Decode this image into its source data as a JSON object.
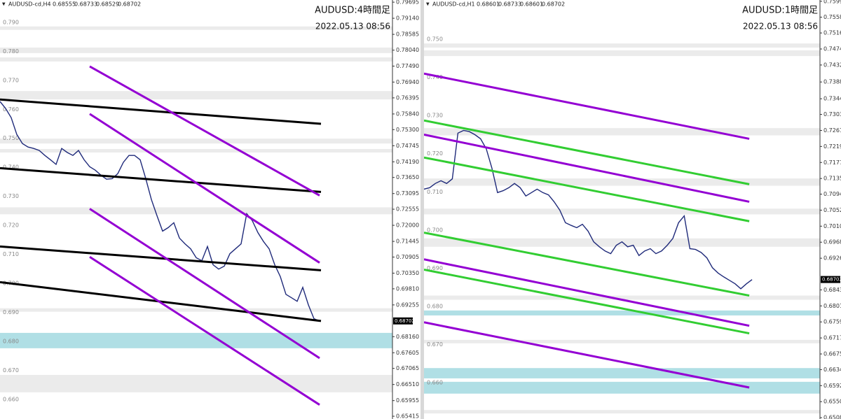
{
  "chart_data": [
    {
      "type": "line",
      "title": "AUDUSD-cd,H4",
      "ohlc": [
        0.68555,
        0.68733,
        0.68529,
        0.68702
      ],
      "overlay_title": "AUDUSD:4時間足",
      "timestamp": "2022.05.13 08:56",
      "current_price": 0.68702,
      "ylim": [
        0.6532,
        0.7977
      ],
      "xlim": [
        0,
        70
      ],
      "grid": false,
      "color": "#1f2a7a",
      "yticks": [
        0.79695,
        {
          "value": 0.7914,
          "label": "0.79140"
        },
        0.78585,
        {
          "value": 0.7804,
          "label": "0.78040"
        },
        {
          "value": 0.7749,
          "label": "0.77490"
        },
        {
          "value": 0.7694,
          "label": "0.76940"
        },
        0.76395,
        {
          "value": 0.7584,
          "label": "0.75840"
        },
        {
          "value": 0.753,
          "label": "0.75300"
        },
        0.74745,
        {
          "value": 0.7419,
          "label": "0.74190"
        },
        {
          "value": 0.7365,
          "label": "0.73650"
        },
        0.73095,
        0.72555,
        {
          "value": 0.72,
          "label": "0.72000"
        },
        0.71445,
        0.70905,
        {
          "value": 0.7035,
          "label": "0.70350"
        },
        {
          "value": 0.6981,
          "label": "0.69810"
        },
        0.69255,
        {
          "value": 0.6816,
          "label": "0.68160"
        },
        0.67605,
        0.67065,
        {
          "value": 0.6651,
          "label": "0.66510"
        },
        0.65955,
        0.65415
      ],
      "grid_labels": [
        {
          "value": 0.79,
          "label": "0.790"
        },
        {
          "value": 0.78,
          "label": "0.780"
        },
        {
          "value": 0.77,
          "label": "0.770"
        },
        {
          "value": 0.76,
          "label": "0.760"
        },
        {
          "value": 0.75,
          "label": "0.750"
        },
        {
          "value": 0.74,
          "label": "0.740"
        },
        {
          "value": 0.73,
          "label": "0.730"
        },
        {
          "value": 0.72,
          "label": "0.720"
        },
        {
          "value": 0.71,
          "label": "0.710"
        },
        {
          "value": 0.7,
          "label": "0.700"
        },
        {
          "value": 0.69,
          "label": "0.690"
        },
        {
          "value": 0.68,
          "label": "0.680"
        },
        {
          "value": 0.67,
          "label": "0.670"
        },
        {
          "value": 0.66,
          "label": "0.660"
        }
      ],
      "values": [
        0.7627,
        0.7603,
        0.7571,
        0.7513,
        0.7482,
        0.747,
        0.7465,
        0.7458,
        0.7441,
        0.7426,
        0.741,
        0.7465,
        0.7451,
        0.7441,
        0.7458,
        0.7426,
        0.7402,
        0.739,
        0.7373,
        0.7359,
        0.7361,
        0.7378,
        0.7417,
        0.7441,
        0.7441,
        0.7426,
        0.7361,
        0.7289,
        0.7233,
        0.718,
        0.7192,
        0.7209,
        0.7156,
        0.7136,
        0.7119,
        0.7088,
        0.7078,
        0.7127,
        0.7064,
        0.7049,
        0.7059,
        0.7102,
        0.7119,
        0.7136,
        0.724,
        0.7216,
        0.7175,
        0.7144,
        0.7119,
        0.7064,
        0.7023,
        0.6962,
        0.695,
        0.6938,
        0.6986,
        0.6926,
        0.6878,
        0.687
      ],
      "zones": [
        {
          "from": 0.7874,
          "to": 0.7886,
          "color": "#ebebeb"
        },
        {
          "from": 0.7794,
          "to": 0.7813,
          "color": "#ebebeb"
        },
        {
          "from": 0.7765,
          "to": 0.7779,
          "color": "#ebebeb"
        },
        {
          "from": 0.7634,
          "to": 0.7663,
          "color": "#ebebeb"
        },
        {
          "from": 0.7482,
          "to": 0.7499,
          "color": "#ebebeb"
        },
        {
          "from": 0.7451,
          "to": 0.7463,
          "color": "#ebebeb"
        },
        {
          "from": 0.7238,
          "to": 0.7262,
          "color": "#ebebeb"
        },
        {
          "from": 0.6902,
          "to": 0.6914,
          "color": "#ebebeb"
        },
        {
          "from": 0.6776,
          "to": 0.6829,
          "color": "#b0dfe5"
        },
        {
          "from": 0.6624,
          "to": 0.6684,
          "color": "#ebebeb"
        }
      ],
      "lines": [
        {
          "x": [
            0,
            57.25
          ],
          "y": [
            0.7634,
            0.755
          ],
          "color": "#000000"
        },
        {
          "x": [
            0,
            57.25
          ],
          "y": [
            0.7397,
            0.7315
          ],
          "color": "#000000"
        },
        {
          "x": [
            0,
            57.25
          ],
          "y": [
            0.7127,
            0.7045
          ],
          "color": "#000000"
        },
        {
          "x": [
            0,
            57.25
          ],
          "y": [
            0.7004,
            0.687
          ],
          "color": "#000000"
        },
        {
          "x": [
            16,
            57
          ],
          "y": [
            0.7748,
            0.7303
          ],
          "color": "#9400d3"
        },
        {
          "x": [
            16,
            57
          ],
          "y": [
            0.7584,
            0.7071
          ],
          "color": "#9400d3"
        },
        {
          "x": [
            16,
            57
          ],
          "y": [
            0.7257,
            0.6742
          ],
          "color": "#9400d3"
        },
        {
          "x": [
            16,
            57
          ],
          "y": [
            0.7091,
            0.6581
          ],
          "color": "#9400d3"
        }
      ]
    },
    {
      "type": "line",
      "title": "AUDUSD-cd,H1",
      "ohlc": [
        0.68601,
        0.68733,
        0.68601,
        0.68702
      ],
      "overlay_title": "AUDUSD:1時間足",
      "timestamp": "2022.05.13 08:56",
      "current_price": 0.68702,
      "ylim": [
        0.65045,
        0.76029
      ],
      "xlim": [
        0,
        70
      ],
      "grid": false,
      "color": "#1f2a7a",
      "yticks": [
        0.75995,
        {
          "value": 0.7558,
          "label": "0.75580"
        },
        0.75165,
        0.74745,
        0.74325,
        {
          "value": 0.7388,
          "label": "0.73880"
        },
        {
          "value": 0.7344,
          "label": "0.73440"
        },
        {
          "value": 0.7303,
          "label": "0.73030"
        },
        {
          "value": 0.7261,
          "label": "0.72610"
        },
        {
          "value": 0.7219,
          "label": "0.72190"
        },
        {
          "value": 0.7177,
          "label": "0.71770"
        },
        {
          "value": 0.7135,
          "label": "0.71350"
        },
        {
          "value": 0.7094,
          "label": "0.70940"
        },
        {
          "value": 0.7052,
          "label": "0.70520"
        },
        {
          "value": 0.701,
          "label": "0.70100"
        },
        {
          "value": 0.6968,
          "label": "0.69680"
        },
        {
          "value": 0.6926,
          "label": "0.69260"
        },
        {
          "value": 0.6843,
          "label": "0.68430"
        },
        {
          "value": 0.6801,
          "label": "0.68010"
        },
        {
          "value": 0.6759,
          "label": "0.67590"
        },
        {
          "value": 0.6717,
          "label": "0.67170"
        },
        {
          "value": 0.6675,
          "label": "0.66750"
        },
        {
          "value": 0.6634,
          "label": "0.66340"
        },
        {
          "value": 0.6592,
          "label": "0.65920"
        },
        {
          "value": 0.655,
          "label": "0.65500"
        },
        {
          "value": 0.6508,
          "label": "0.65080"
        }
      ],
      "grid_labels": [
        {
          "value": 0.75,
          "label": "0.750"
        },
        {
          "value": 0.74,
          "label": "0.740"
        },
        {
          "value": 0.73,
          "label": "0.730"
        },
        {
          "value": 0.72,
          "label": "0.720"
        },
        {
          "value": 0.71,
          "label": "0.710"
        },
        {
          "value": 0.7,
          "label": "0.700"
        },
        {
          "value": 0.69,
          "label": "0.690"
        },
        {
          "value": 0.68,
          "label": "0.680"
        },
        {
          "value": 0.67,
          "label": "0.670"
        },
        {
          "value": 0.66,
          "label": "0.660"
        }
      ],
      "values": [
        0.7107,
        0.7111,
        0.7122,
        0.7129,
        0.7122,
        0.7134,
        0.7254,
        0.7261,
        0.7258,
        0.725,
        0.7239,
        0.7213,
        0.7162,
        0.7098,
        0.7103,
        0.7111,
        0.7122,
        0.7111,
        0.7089,
        0.7098,
        0.7107,
        0.7098,
        0.7092,
        0.7074,
        0.7052,
        0.7019,
        0.7012,
        0.7006,
        0.7015,
        0.6997,
        0.6969,
        0.6956,
        0.6945,
        0.6938,
        0.696,
        0.6969,
        0.6956,
        0.696,
        0.6933,
        0.6945,
        0.6951,
        0.6938,
        0.6945,
        0.696,
        0.6978,
        0.7019,
        0.7037,
        0.6951,
        0.6949,
        0.6941,
        0.6927,
        0.6901,
        0.6887,
        0.6877,
        0.6868,
        0.6859,
        0.6846,
        0.6859,
        0.687
      ],
      "zones": [
        {
          "from": 0.7478,
          "to": 0.7489,
          "color": "#ebebeb"
        },
        {
          "from": 0.7456,
          "to": 0.7471,
          "color": "#ebebeb"
        },
        {
          "from": 0.7248,
          "to": 0.7267,
          "color": "#ebebeb"
        },
        {
          "from": 0.7116,
          "to": 0.7135,
          "color": "#ebebeb"
        },
        {
          "from": 0.7041,
          "to": 0.7056,
          "color": "#ebebeb"
        },
        {
          "from": 0.6956,
          "to": 0.6978,
          "color": "#ebebeb"
        },
        {
          "from": 0.6817,
          "to": 0.6828,
          "color": "#ebebeb"
        },
        {
          "from": 0.6776,
          "to": 0.6789,
          "color": "#b0dfe5"
        },
        {
          "from": 0.6703,
          "to": 0.6712,
          "color": "#ebebeb"
        },
        {
          "from": 0.6611,
          "to": 0.6638,
          "color": "#b0dfe5"
        },
        {
          "from": 0.6571,
          "to": 0.6602,
          "color": "#b0dfe5"
        },
        {
          "from": 0.6519,
          "to": 0.6528,
          "color": "#ebebeb"
        }
      ],
      "lines": [
        {
          "x": [
            0,
            57.5
          ],
          "y": [
            0.741,
            0.7239
          ],
          "color": "#9400d3"
        },
        {
          "x": [
            0,
            57.5
          ],
          "y": [
            0.725,
            0.7074
          ],
          "color": "#9400d3"
        },
        {
          "x": [
            0,
            57.5
          ],
          "y": [
            0.7287,
            0.712
          ],
          "color": "#32cd32"
        },
        {
          "x": [
            0,
            57.5
          ],
          "y": [
            0.719,
            0.7023
          ],
          "color": "#32cd32"
        },
        {
          "x": [
            0,
            57.5
          ],
          "y": [
            0.6993,
            0.6828
          ],
          "color": "#32cd32"
        },
        {
          "x": [
            0,
            57.5
          ],
          "y": [
            0.6896,
            0.6729
          ],
          "color": "#32cd32"
        },
        {
          "x": [
            0,
            57.5
          ],
          "y": [
            0.6923,
            0.6749
          ],
          "color": "#9400d3"
        },
        {
          "x": [
            0,
            57.5
          ],
          "y": [
            0.6758,
            0.6587
          ],
          "color": "#9400d3"
        }
      ]
    }
  ]
}
